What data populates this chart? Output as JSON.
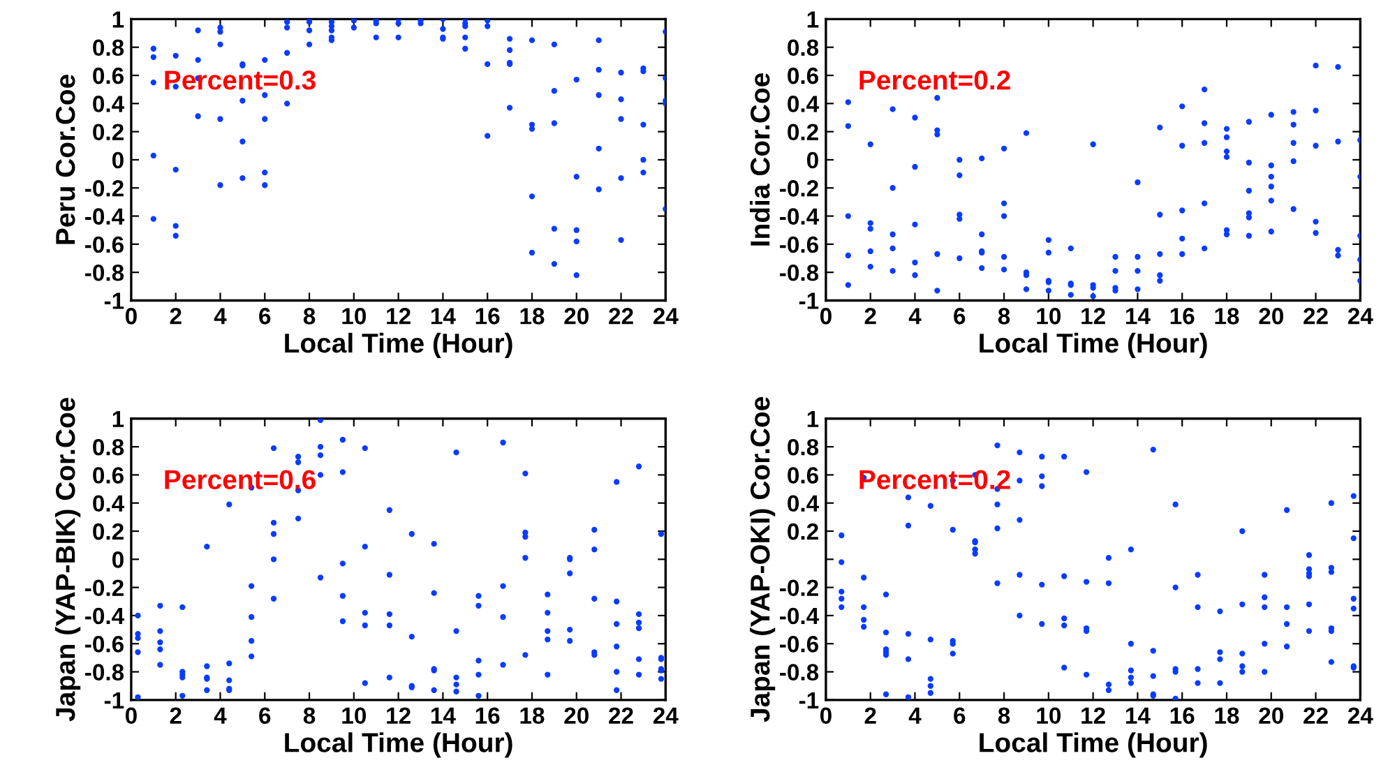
{
  "chart_data": [
    {
      "type": "scatter",
      "xlabel": "Local Time (Hour)",
      "ylabel": "Peru Cor.Coe",
      "annotations": [
        "Percent=0.3"
      ],
      "marker": "circle",
      "grid": false,
      "xlim": [
        0,
        24
      ],
      "ylim": [
        -1,
        1
      ],
      "xticks": [
        0,
        2,
        4,
        6,
        8,
        10,
        12,
        14,
        16,
        18,
        20,
        22,
        24
      ],
      "yticks": [
        -1,
        -0.8,
        -0.6,
        -0.4,
        -0.2,
        0,
        0.2,
        0.4,
        0.6,
        0.8,
        1
      ],
      "series": [
        {
          "color": "#0a3cff",
          "x": [
            1,
            1,
            1,
            1,
            1,
            2,
            2,
            2,
            2,
            2,
            3,
            3,
            3,
            3,
            4,
            4,
            4,
            4,
            4,
            5,
            5,
            5,
            5,
            5,
            6,
            6,
            6,
            6,
            6,
            7,
            7,
            7,
            7,
            8,
            8,
            8,
            8,
            9,
            9,
            9,
            9,
            9,
            10,
            10,
            10,
            11,
            11,
            11,
            11,
            12,
            12,
            12,
            13,
            13,
            13,
            14,
            14,
            14,
            14,
            15,
            15,
            15,
            15,
            15,
            16,
            16,
            16,
            16,
            17,
            17,
            17,
            17,
            17,
            18,
            18,
            18,
            18,
            18,
            19,
            19,
            19,
            19,
            19,
            20,
            20,
            20,
            20,
            20,
            21,
            21,
            21,
            21,
            21,
            22,
            22,
            22,
            22,
            22,
            23,
            23,
            23,
            23,
            23,
            24,
            24,
            24,
            24,
            24
          ],
          "values": [
            0.79,
            0.73,
            0.55,
            0.03,
            -0.42,
            0.74,
            0.52,
            -0.07,
            -0.47,
            -0.54,
            0.92,
            0.71,
            0.58,
            0.31,
            0.94,
            0.91,
            0.82,
            0.29,
            -0.18,
            0.68,
            0.67,
            0.42,
            0.13,
            -0.13,
            0.71,
            0.46,
            0.29,
            -0.09,
            -0.18,
            0.98,
            0.94,
            0.76,
            0.4,
            1.0,
            0.98,
            0.92,
            0.82,
            0.98,
            0.95,
            0.92,
            0.87,
            0.85,
            1.0,
            0.99,
            0.94,
            1.0,
            0.99,
            0.97,
            0.87,
            1.0,
            0.97,
            0.87,
            1.0,
            0.99,
            0.97,
            1.0,
            0.93,
            0.87,
            0.86,
            1.0,
            0.97,
            0.95,
            0.87,
            0.79,
            0.99,
            0.95,
            0.68,
            0.17,
            0.86,
            0.78,
            0.69,
            0.68,
            0.37,
            0.85,
            0.25,
            0.22,
            -0.26,
            -0.66,
            0.82,
            0.49,
            0.26,
            -0.49,
            -0.74,
            0.57,
            -0.12,
            -0.5,
            -0.58,
            -0.82,
            0.85,
            0.64,
            0.46,
            0.08,
            -0.21,
            0.62,
            0.43,
            0.29,
            -0.13,
            -0.57,
            0.65,
            0.63,
            0.25,
            0.0,
            -0.09,
            0.91,
            0.58,
            0.42,
            0.4,
            -0.35
          ]
        }
      ]
    },
    {
      "type": "scatter",
      "xlabel": "Local Time (Hour)",
      "ylabel": "India Cor.Coe",
      "annotations": [
        "Percent=0.2"
      ],
      "marker": "circle",
      "grid": false,
      "xlim": [
        0,
        24
      ],
      "ylim": [
        -1,
        1
      ],
      "xticks": [
        0,
        2,
        4,
        6,
        8,
        10,
        12,
        14,
        16,
        18,
        20,
        22,
        24
      ],
      "yticks": [
        -1,
        -0.8,
        -0.6,
        -0.4,
        -0.2,
        0,
        0.2,
        0.4,
        0.6,
        0.8,
        1
      ],
      "series": [
        {
          "color": "#0a3cff",
          "x": [
            1,
            1,
            1,
            1,
            1,
            2,
            2,
            2,
            2,
            2,
            3,
            3,
            3,
            3,
            3,
            4,
            4,
            4,
            4,
            4,
            5,
            5,
            5,
            5,
            5,
            6,
            6,
            6,
            6,
            6,
            7,
            7,
            7,
            7,
            7,
            8,
            8,
            8,
            8,
            8,
            9,
            9,
            9,
            9,
            10,
            10,
            10,
            10,
            10,
            11,
            11,
            11,
            11,
            12,
            12,
            12,
            12,
            13,
            13,
            13,
            13,
            14,
            14,
            14,
            14,
            15,
            15,
            15,
            15,
            15,
            16,
            16,
            16,
            16,
            16,
            17,
            17,
            17,
            17,
            17,
            18,
            18,
            18,
            18,
            18,
            18,
            19,
            19,
            19,
            19,
            19,
            19,
            20,
            20,
            20,
            20,
            20,
            20,
            21,
            21,
            21,
            21,
            21,
            22,
            22,
            22,
            22,
            22,
            23,
            23,
            23,
            23,
            24,
            24,
            24,
            24,
            24
          ],
          "values": [
            0.41,
            0.24,
            -0.4,
            -0.68,
            -0.89,
            0.11,
            -0.45,
            -0.49,
            -0.65,
            -0.76,
            0.36,
            -0.2,
            -0.53,
            -0.63,
            -0.79,
            0.3,
            -0.05,
            -0.46,
            -0.73,
            -0.82,
            0.44,
            0.21,
            0.18,
            -0.67,
            -0.93,
            0.0,
            -0.11,
            -0.39,
            -0.42,
            -0.7,
            0.01,
            -0.53,
            -0.65,
            -0.66,
            -0.77,
            0.08,
            -0.31,
            -0.4,
            -0.69,
            -0.78,
            0.19,
            -0.8,
            -0.82,
            -0.92,
            -0.57,
            -0.66,
            -0.86,
            -0.87,
            -0.93,
            -0.63,
            -0.88,
            -0.89,
            -0.96,
            0.11,
            -0.89,
            -0.91,
            -0.97,
            -0.69,
            -0.79,
            -0.91,
            -0.93,
            -0.16,
            -0.69,
            -0.79,
            -0.92,
            0.23,
            -0.39,
            -0.67,
            -0.82,
            -0.86,
            0.38,
            0.1,
            -0.36,
            -0.56,
            -0.67,
            0.5,
            0.26,
            0.12,
            -0.31,
            -0.63,
            0.22,
            0.16,
            0.06,
            0.02,
            -0.5,
            -0.53,
            0.27,
            -0.02,
            -0.22,
            -0.38,
            -0.41,
            -0.54,
            0.32,
            -0.04,
            -0.12,
            -0.19,
            -0.29,
            -0.51,
            0.34,
            0.25,
            0.12,
            -0.01,
            -0.35,
            0.67,
            0.35,
            0.1,
            -0.44,
            -0.52,
            0.66,
            0.13,
            -0.64,
            -0.68,
            0.14,
            -0.12,
            -0.54,
            -0.71,
            -0.86
          ]
        }
      ]
    },
    {
      "type": "scatter",
      "xlabel": "Local Time (Hour)",
      "ylabel": "Japan (YAP-BIK) Cor.Coe",
      "annotations": [
        "Percent=0.6"
      ],
      "marker": "circle",
      "grid": false,
      "xlim": [
        0,
        24
      ],
      "ylim": [
        -1,
        1
      ],
      "xticks": [
        0,
        2,
        4,
        6,
        8,
        10,
        12,
        14,
        16,
        18,
        20,
        22,
        24
      ],
      "yticks": [
        -1,
        -0.8,
        -0.6,
        -0.4,
        -0.2,
        0,
        0.2,
        0.4,
        0.6,
        0.8,
        1
      ],
      "series": [
        {
          "color": "#0a3cff",
          "x": [
            0.3,
            0.3,
            0.3,
            0.3,
            0.3,
            1.3,
            1.3,
            1.3,
            1.3,
            1.3,
            2.3,
            2.3,
            2.3,
            2.3,
            2.3,
            3.4,
            3.4,
            3.4,
            3.4,
            3.4,
            4.4,
            4.4,
            4.4,
            4.4,
            4.4,
            5.4,
            5.4,
            5.4,
            5.4,
            5.4,
            6.4,
            6.4,
            6.4,
            6.4,
            6.4,
            7.5,
            7.5,
            7.5,
            7.5,
            8.5,
            8.5,
            8.5,
            8.5,
            8.5,
            9.5,
            9.5,
            9.5,
            9.5,
            9.5,
            10.5,
            10.5,
            10.5,
            10.5,
            10.5,
            11.6,
            11.6,
            11.6,
            11.6,
            11.6,
            12.6,
            12.6,
            12.6,
            12.6,
            13.6,
            13.6,
            13.6,
            13.6,
            13.6,
            14.6,
            14.6,
            14.6,
            14.6,
            14.6,
            15.6,
            15.6,
            15.6,
            15.6,
            15.6,
            16.7,
            16.7,
            16.7,
            16.7,
            17.7,
            17.7,
            17.7,
            17.7,
            17.7,
            18.7,
            18.7,
            18.7,
            18.7,
            18.7,
            19.7,
            19.7,
            19.7,
            19.7,
            19.7,
            20.8,
            20.8,
            20.8,
            20.8,
            20.8,
            21.8,
            21.8,
            21.8,
            21.8,
            21.8,
            21.8,
            22.8,
            22.8,
            22.8,
            22.8,
            22.8,
            22.8,
            23.8,
            23.8,
            23.8,
            23.8,
            23.8,
            23.8
          ],
          "values": [
            -0.4,
            -0.53,
            -0.56,
            -0.66,
            -0.98,
            -0.33,
            -0.51,
            -0.59,
            -0.64,
            -0.75,
            -0.34,
            -0.8,
            -0.82,
            -0.84,
            -0.97,
            0.09,
            -0.76,
            -0.84,
            -0.85,
            -0.93,
            0.39,
            -0.74,
            -0.86,
            -0.92,
            -0.93,
            0.51,
            -0.19,
            -0.41,
            -0.58,
            -0.69,
            0.79,
            0.26,
            0.18,
            0.0,
            -0.28,
            0.73,
            0.69,
            0.49,
            0.29,
            0.99,
            0.8,
            0.74,
            0.6,
            -0.13,
            0.85,
            0.62,
            -0.03,
            -0.26,
            -0.44,
            0.79,
            0.09,
            -0.38,
            -0.47,
            -0.88,
            0.35,
            -0.11,
            -0.39,
            -0.47,
            -0.84,
            0.18,
            -0.55,
            -0.9,
            -0.91,
            0.11,
            -0.24,
            -0.78,
            -0.79,
            -0.93,
            0.76,
            -0.51,
            -0.84,
            -0.89,
            -0.94,
            -0.26,
            -0.33,
            -0.72,
            -0.82,
            -0.97,
            0.83,
            -0.19,
            -0.41,
            -0.75,
            0.61,
            0.19,
            0.16,
            0.01,
            -0.68,
            -0.25,
            -0.38,
            -0.51,
            -0.57,
            -0.82,
            0.01,
            0.0,
            -0.1,
            -0.5,
            -0.58,
            0.21,
            0.07,
            -0.28,
            -0.66,
            -0.68,
            0.55,
            -0.3,
            -0.46,
            -0.62,
            -0.8,
            -0.93,
            0.66,
            -0.39,
            -0.45,
            -0.49,
            -0.71,
            -0.82,
            0.18,
            -0.7,
            -0.71,
            -0.78,
            -0.79,
            -0.85
          ]
        }
      ]
    },
    {
      "type": "scatter",
      "xlabel": "Local Time (Hour)",
      "ylabel": "Japan (YAP-OKI) Cor.Coe",
      "annotations": [
        "Percent=0.2"
      ],
      "marker": "circle",
      "grid": false,
      "xlim": [
        0,
        24
      ],
      "ylim": [
        -1,
        1
      ],
      "xticks": [
        0,
        2,
        4,
        6,
        8,
        10,
        12,
        14,
        16,
        18,
        20,
        22,
        24
      ],
      "yticks": [
        -1,
        -0.8,
        -0.6,
        -0.4,
        -0.2,
        {
          "value": 0,
          "label": null
        },
        0.2,
        0.4,
        0.6,
        0.8,
        1
      ],
      "series": [
        {
          "color": "#0a3cff",
          "x": [
            0.7,
            0.7,
            0.7,
            0.7,
            0.7,
            1.7,
            1.7,
            1.7,
            1.7,
            1.7,
            2.7,
            2.7,
            2.7,
            2.7,
            2.7,
            2.7,
            3.7,
            3.7,
            3.7,
            3.7,
            3.7,
            4.7,
            4.7,
            4.7,
            4.7,
            4.7,
            5.7,
            5.7,
            5.7,
            5.7,
            5.7,
            6.7,
            6.7,
            6.7,
            6.7,
            6.7,
            7.7,
            7.7,
            7.7,
            7.7,
            7.7,
            8.7,
            8.7,
            8.7,
            8.7,
            8.7,
            9.7,
            9.7,
            9.7,
            9.7,
            9.7,
            10.7,
            10.7,
            10.7,
            10.7,
            10.7,
            11.7,
            11.7,
            11.7,
            11.7,
            11.7,
            12.7,
            12.7,
            12.7,
            12.7,
            13.7,
            13.7,
            13.7,
            13.7,
            13.7,
            14.7,
            14.7,
            14.7,
            14.7,
            14.7,
            15.7,
            15.7,
            15.7,
            15.7,
            15.7,
            16.7,
            16.7,
            16.7,
            16.7,
            17.7,
            17.7,
            17.7,
            17.7,
            18.7,
            18.7,
            18.7,
            18.7,
            18.7,
            19.7,
            19.7,
            19.7,
            19.7,
            19.7,
            20.7,
            20.7,
            20.7,
            20.7,
            21.7,
            21.7,
            21.7,
            21.7,
            21.7,
            21.7,
            22.7,
            22.7,
            22.7,
            22.7,
            22.7,
            22.7,
            23.7,
            23.7,
            23.7,
            23.7,
            23.7,
            23.7
          ],
          "values": [
            0.17,
            -0.02,
            -0.23,
            -0.28,
            -0.34,
            0.58,
            -0.13,
            -0.34,
            -0.43,
            -0.48,
            -0.25,
            -0.52,
            -0.64,
            -0.66,
            -0.68,
            -0.96,
            0.44,
            0.24,
            -0.53,
            -0.71,
            -0.98,
            0.38,
            -0.57,
            -0.85,
            -0.9,
            -0.95,
            0.56,
            0.21,
            -0.58,
            -0.6,
            -0.67,
            0.6,
            0.13,
            0.12,
            0.07,
            0.04,
            0.81,
            0.5,
            0.39,
            0.22,
            -0.17,
            0.76,
            0.56,
            0.28,
            -0.11,
            -0.4,
            0.73,
            0.59,
            0.52,
            -0.18,
            -0.46,
            0.73,
            -0.12,
            -0.42,
            -0.47,
            -0.77,
            0.62,
            -0.16,
            -0.49,
            -0.51,
            -0.82,
            0.01,
            -0.17,
            -0.89,
            -0.93,
            0.07,
            -0.6,
            -0.79,
            -0.84,
            -0.88,
            0.78,
            -0.65,
            -0.83,
            -0.96,
            -0.97,
            0.39,
            -0.2,
            -0.78,
            -0.8,
            -0.99,
            -0.11,
            -0.34,
            -0.78,
            -0.88,
            -0.37,
            -0.66,
            -0.71,
            -0.88,
            0.2,
            -0.32,
            -0.67,
            -0.76,
            -0.8,
            -0.11,
            -0.27,
            -0.34,
            -0.6,
            -0.8,
            0.35,
            -0.34,
            -0.46,
            -0.62,
            0.03,
            -0.07,
            -0.1,
            -0.12,
            -0.32,
            -0.51,
            0.4,
            -0.06,
            -0.09,
            -0.49,
            -0.51,
            -0.73,
            0.45,
            0.15,
            -0.28,
            -0.35,
            -0.76,
            -0.77
          ]
        }
      ]
    }
  ]
}
